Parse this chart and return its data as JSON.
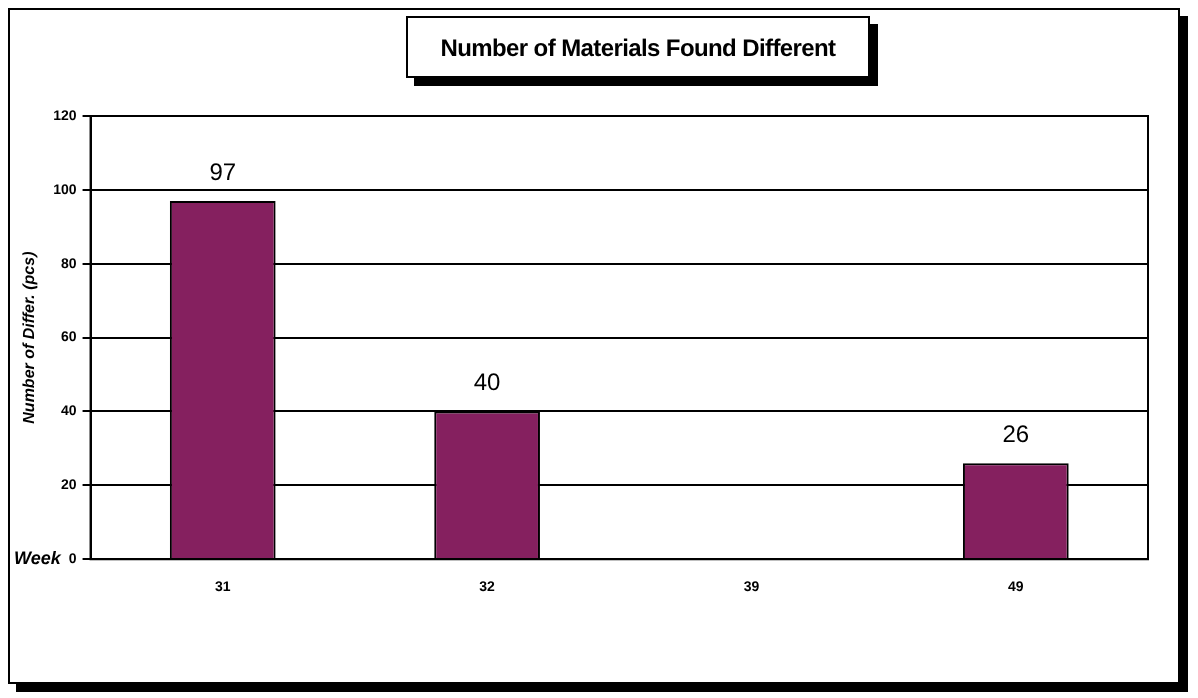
{
  "chart_data": {
    "type": "bar",
    "title": "Number of Materials Found Different",
    "xlabel": "Week",
    "ylabel": "Number of Differ. (pcs)",
    "categories": [
      "31",
      "32",
      "39",
      "49"
    ],
    "values": [
      97,
      40,
      null,
      26
    ],
    "value_labels": [
      "97",
      "40",
      null,
      "26"
    ],
    "color": "#85205f",
    "ylim": [
      0,
      120
    ],
    "yticks": [
      0,
      20,
      40,
      60,
      80,
      100,
      120
    ],
    "grid": "y",
    "legend": false
  }
}
